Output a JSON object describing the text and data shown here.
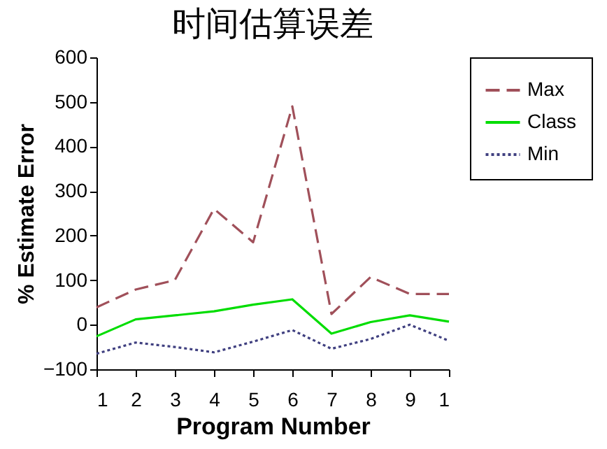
{
  "chart_data": {
    "type": "line",
    "title": "时间估算误差",
    "xlabel": "Program Number",
    "ylabel": "% Estimate Error",
    "categories": [
      "1",
      "2",
      "3",
      "4",
      "5",
      "6",
      "7",
      "8",
      "9",
      "1"
    ],
    "series": [
      {
        "name": "Max",
        "color": "#a0505a",
        "line_style": "dashed",
        "values": [
          39,
          79,
          100,
          260,
          185,
          490,
          24,
          107,
          69,
          69
        ]
      },
      {
        "name": "Class",
        "color": "#00dd00",
        "line_style": "solid",
        "values": [
          -26,
          12,
          21,
          30,
          45,
          57,
          -20,
          6,
          21,
          7
        ]
      },
      {
        "name": "Min",
        "color": "#404080",
        "line_style": "dotted",
        "values": [
          -65,
          -40,
          -50,
          -62,
          -38,
          -12,
          -54,
          -32,
          0,
          -36
        ]
      }
    ],
    "ylim": [
      -100,
      600
    ],
    "yticks": [
      -100,
      0,
      100,
      200,
      300,
      400,
      500,
      600
    ],
    "legend": "right",
    "grid": false,
    "marker": "none"
  }
}
